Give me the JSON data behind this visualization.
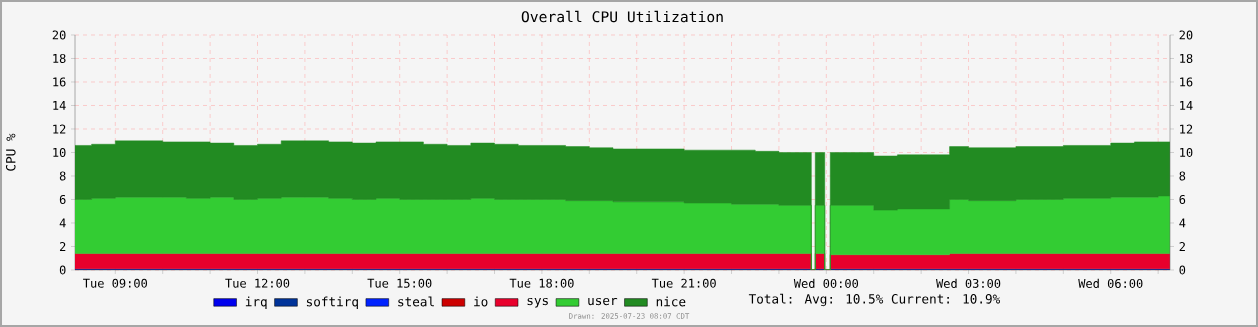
{
  "chart_data": {
    "type": "area",
    "stacked": true,
    "title": "Overall CPU Utilization",
    "ylabel": "CPU %",
    "x": [
      "2025-07-22T08:09",
      "2025-07-22T08:30",
      "2025-07-22T09:00",
      "2025-07-22T09:30",
      "2025-07-22T10:00",
      "2025-07-22T10:30",
      "2025-07-22T11:00",
      "2025-07-22T11:30",
      "2025-07-22T12:00",
      "2025-07-22T12:30",
      "2025-07-22T13:00",
      "2025-07-22T13:30",
      "2025-07-22T14:00",
      "2025-07-22T14:30",
      "2025-07-22T15:00",
      "2025-07-22T15:30",
      "2025-07-22T16:00",
      "2025-07-22T16:30",
      "2025-07-22T17:00",
      "2025-07-22T17:30",
      "2025-07-22T18:00",
      "2025-07-22T18:30",
      "2025-07-22T19:00",
      "2025-07-22T19:30",
      "2025-07-22T20:00",
      "2025-07-22T20:30",
      "2025-07-22T21:00",
      "2025-07-22T21:30",
      "2025-07-22T22:00",
      "2025-07-22T22:30",
      "2025-07-22T23:00",
      "2025-07-22T23:30",
      "2025-07-22T23:41",
      "2025-07-22T23:46",
      "2025-07-22T23:58",
      "2025-07-23T00:05",
      "2025-07-23T00:30",
      "2025-07-23T01:00",
      "2025-07-23T01:30",
      "2025-07-23T02:00",
      "2025-07-23T02:36",
      "2025-07-23T03:00",
      "2025-07-23T03:30",
      "2025-07-23T04:00",
      "2025-07-23T04:30",
      "2025-07-23T05:00",
      "2025-07-23T05:30",
      "2025-07-23T06:00",
      "2025-07-23T06:30",
      "2025-07-23T07:00",
      "2025-07-23T07:15"
    ],
    "series": [
      {
        "name": "irq",
        "color": "#0000ee",
        "values": [
          null,
          null,
          null,
          null,
          null,
          null,
          null,
          null,
          null,
          null,
          null,
          null,
          null,
          null,
          null,
          null,
          null,
          null,
          null,
          null,
          null,
          null,
          null,
          null,
          null,
          null,
          null,
          null,
          null,
          null,
          null,
          null,
          null,
          null,
          null,
          null,
          null,
          null,
          null,
          null,
          null,
          null,
          null,
          null,
          null,
          null,
          null,
          null,
          null,
          null,
          null
        ]
      },
      {
        "name": "softirq",
        "color": "#003399",
        "values": [
          0.1,
          0.1,
          0.1,
          0.1,
          0.1,
          0.1,
          0.1,
          0.1,
          0.1,
          0.1,
          0.1,
          0.1,
          0.1,
          0.1,
          0.1,
          0.1,
          0.1,
          0.1,
          0.1,
          0.1,
          0.1,
          0.1,
          0.1,
          0.1,
          0.1,
          0.1,
          0.1,
          0.1,
          0.1,
          0.1,
          0.1,
          0.1,
          null,
          0.1,
          null,
          0.1,
          0.1,
          0.1,
          0.1,
          0.1,
          0.1,
          0.1,
          0.1,
          0.1,
          0.1,
          0.1,
          0.1,
          0.1,
          0.1,
          0.1,
          0.1
        ]
      },
      {
        "name": "steal",
        "color": "#0022ff",
        "values": [
          null,
          null,
          null,
          null,
          null,
          null,
          null,
          null,
          null,
          null,
          null,
          null,
          null,
          null,
          null,
          null,
          null,
          null,
          null,
          null,
          null,
          null,
          null,
          null,
          null,
          null,
          null,
          null,
          null,
          null,
          null,
          null,
          null,
          null,
          null,
          null,
          null,
          null,
          null,
          null,
          null,
          null,
          null,
          null,
          null,
          null,
          null,
          null,
          null,
          null,
          null
        ]
      },
      {
        "name": "io",
        "color": "#cc0000",
        "values": [
          null,
          null,
          null,
          null,
          null,
          null,
          null,
          null,
          null,
          null,
          null,
          null,
          null,
          null,
          null,
          null,
          null,
          null,
          null,
          null,
          null,
          null,
          null,
          null,
          null,
          null,
          null,
          null,
          null,
          null,
          null,
          null,
          null,
          null,
          null,
          null,
          null,
          null,
          null,
          null,
          null,
          null,
          null,
          null,
          null,
          null,
          null,
          null,
          null,
          null,
          null
        ]
      },
      {
        "name": "sys",
        "color": "#e8002c",
        "values": [
          1.3,
          1.3,
          1.3,
          1.3,
          1.3,
          1.3,
          1.3,
          1.3,
          1.3,
          1.3,
          1.3,
          1.3,
          1.3,
          1.3,
          1.3,
          1.3,
          1.3,
          1.3,
          1.3,
          1.3,
          1.3,
          1.3,
          1.3,
          1.3,
          1.3,
          1.3,
          1.3,
          1.3,
          1.3,
          1.3,
          1.3,
          1.3,
          null,
          1.3,
          null,
          1.2,
          1.2,
          1.2,
          1.2,
          1.2,
          1.3,
          1.3,
          1.3,
          1.3,
          1.3,
          1.3,
          1.3,
          1.3,
          1.3,
          1.3,
          1.3
        ]
      },
      {
        "name": "user",
        "color": "#33cc33",
        "values": [
          4.6,
          4.7,
          4.8,
          4.8,
          4.8,
          4.7,
          4.8,
          4.6,
          4.7,
          4.8,
          4.8,
          4.7,
          4.6,
          4.7,
          4.6,
          4.6,
          4.6,
          4.7,
          4.6,
          4.6,
          4.6,
          4.5,
          4.5,
          4.4,
          4.4,
          4.4,
          4.3,
          4.3,
          4.2,
          4.2,
          4.1,
          4.1,
          null,
          4.1,
          null,
          4.2,
          4.2,
          3.8,
          3.9,
          3.9,
          4.6,
          4.5,
          4.5,
          4.6,
          4.6,
          4.7,
          4.7,
          4.8,
          4.8,
          4.9,
          4.9
        ]
      },
      {
        "name": "nice",
        "color": "#228b22",
        "values": [
          4.6,
          4.6,
          4.8,
          4.8,
          4.7,
          4.8,
          4.6,
          4.6,
          4.6,
          4.8,
          4.8,
          4.8,
          4.8,
          4.8,
          4.9,
          4.7,
          4.6,
          4.7,
          4.7,
          4.6,
          4.6,
          4.6,
          4.5,
          4.5,
          4.5,
          4.5,
          4.5,
          4.5,
          4.6,
          4.5,
          4.5,
          4.5,
          null,
          4.5,
          null,
          4.5,
          4.5,
          4.6,
          4.6,
          4.6,
          4.5,
          4.5,
          4.5,
          4.5,
          4.5,
          4.5,
          4.5,
          4.6,
          4.7,
          4.6,
          4.6
        ]
      }
    ],
    "xlim": [
      "2025-07-22T08:09",
      "2025-07-23T07:15"
    ],
    "xticks": [
      {
        "value": "2025-07-22T09:00",
        "label": "Tue 09:00"
      },
      {
        "value": "2025-07-22T10:00",
        "label": null
      },
      {
        "value": "2025-07-22T11:00",
        "label": null
      },
      {
        "value": "2025-07-22T12:00",
        "label": "Tue 12:00"
      },
      {
        "value": "2025-07-22T13:00",
        "label": null
      },
      {
        "value": "2025-07-22T14:00",
        "label": null
      },
      {
        "value": "2025-07-22T15:00",
        "label": "Tue 15:00"
      },
      {
        "value": "2025-07-22T16:00",
        "label": null
      },
      {
        "value": "2025-07-22T17:00",
        "label": null
      },
      {
        "value": "2025-07-22T18:00",
        "label": "Tue 18:00"
      },
      {
        "value": "2025-07-22T19:00",
        "label": null
      },
      {
        "value": "2025-07-22T20:00",
        "label": null
      },
      {
        "value": "2025-07-22T21:00",
        "label": "Tue 21:00"
      },
      {
        "value": "2025-07-22T22:00",
        "label": null
      },
      {
        "value": "2025-07-22T23:00",
        "label": null
      },
      {
        "value": "2025-07-23T00:00",
        "label": "Wed 00:00"
      },
      {
        "value": "2025-07-23T01:00",
        "label": null
      },
      {
        "value": "2025-07-23T02:00",
        "label": null
      },
      {
        "value": "2025-07-23T03:00",
        "label": "Wed 03:00"
      },
      {
        "value": "2025-07-23T04:00",
        "label": null
      },
      {
        "value": "2025-07-23T05:00",
        "label": null
      },
      {
        "value": "2025-07-23T06:00",
        "label": "Wed 06:00"
      },
      {
        "value": "2025-07-23T07:00",
        "label": null
      }
    ],
    "ylim": [
      0,
      20
    ],
    "yticks": [
      0,
      2,
      4,
      6,
      8,
      10,
      12,
      14,
      16,
      18,
      20
    ],
    "y2lim": [
      0,
      20
    ],
    "y2ticks": [
      0,
      2,
      4,
      6,
      8,
      10,
      12,
      14,
      16,
      18,
      20
    ],
    "grid": true,
    "legend": "bottom",
    "annotations": [
      "Total:    Avg: 10.5%  Current: 10.9%",
      "Drawn: 2025-07-23 08:07 CDT"
    ]
  }
}
